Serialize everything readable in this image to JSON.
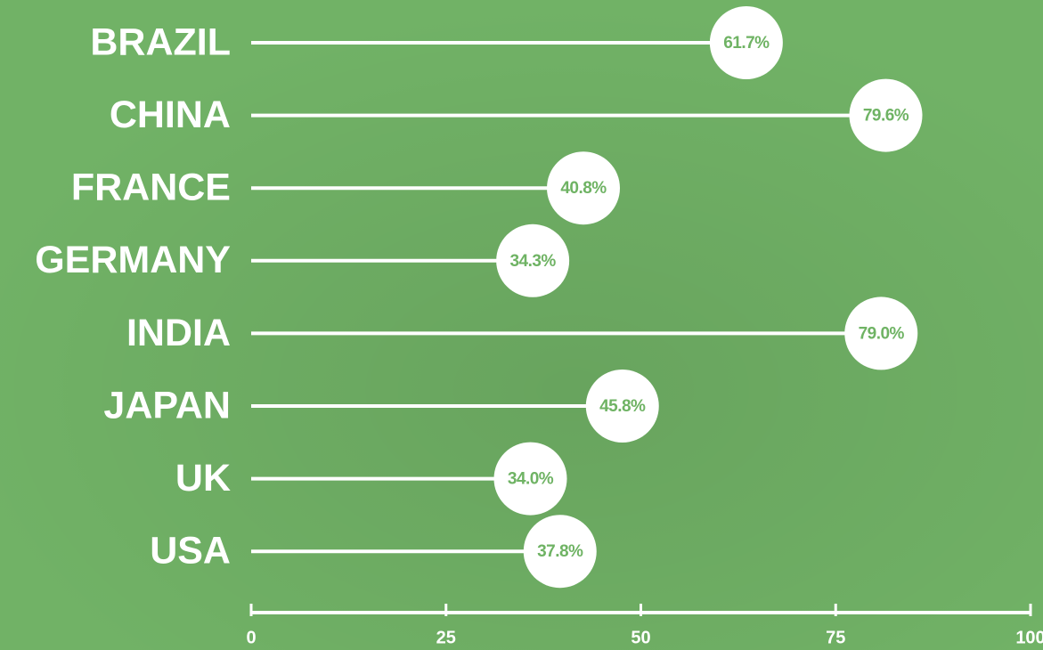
{
  "chart_data": {
    "type": "lollipop",
    "categories": [
      "BRAZIL",
      "CHINA",
      "FRANCE",
      "GERMANY",
      "INDIA",
      "JAPAN",
      "UK",
      "USA"
    ],
    "values": [
      61.7,
      79.6,
      40.8,
      34.3,
      79.0,
      45.8,
      34.0,
      37.8
    ],
    "value_labels": [
      "61.7%",
      "79.6%",
      "40.8%",
      "34.3%",
      "79.0%",
      "45.8%",
      "34.0%",
      "37.8%"
    ],
    "xlim": [
      0,
      100
    ],
    "xticks": [
      0,
      25,
      50,
      75,
      100
    ],
    "color": "#ffffff",
    "label_color": "#6fb364",
    "background": "#71b266"
  }
}
